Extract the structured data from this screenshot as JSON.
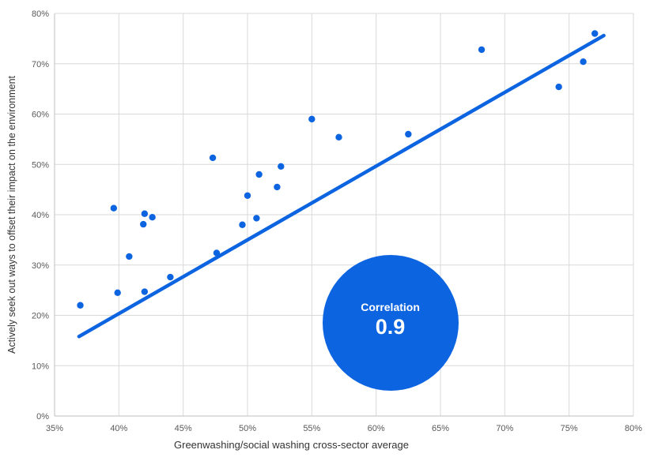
{
  "colors": {
    "accent": "#0d64e1",
    "grid": "#d9d9d9",
    "axis": "#bfbfbf",
    "tick_text": "#595959",
    "title_text": "#333333",
    "annotation_text": "#ffffff"
  },
  "chart_data": {
    "type": "scatter",
    "title": "",
    "xlabel": "Greenwashing/social washing cross-sector average",
    "ylabel": "Actively seek out ways to offset their impact on the environment",
    "xlim": [
      35,
      80
    ],
    "ylim": [
      0,
      80
    ],
    "x_ticks": [
      35,
      40,
      45,
      50,
      55,
      60,
      65,
      70,
      75,
      80
    ],
    "y_ticks": [
      0,
      10,
      20,
      30,
      40,
      50,
      60,
      70,
      80
    ],
    "tick_suffix": "%",
    "grid": true,
    "legend": "none",
    "points": [
      [
        37.0,
        22.0
      ],
      [
        39.6,
        41.3
      ],
      [
        39.9,
        24.5
      ],
      [
        40.8,
        31.7
      ],
      [
        41.9,
        38.1
      ],
      [
        42.0,
        24.7
      ],
      [
        42.0,
        40.2
      ],
      [
        42.6,
        39.5
      ],
      [
        44.0,
        27.6
      ],
      [
        47.3,
        51.3
      ],
      [
        47.6,
        32.4
      ],
      [
        49.6,
        38.0
      ],
      [
        50.0,
        43.8
      ],
      [
        50.7,
        39.3
      ],
      [
        50.9,
        48.0
      ],
      [
        52.3,
        45.5
      ],
      [
        52.6,
        49.6
      ],
      [
        55.0,
        59.0
      ],
      [
        57.1,
        55.4
      ],
      [
        62.5,
        56.0
      ],
      [
        68.2,
        72.8
      ],
      [
        74.2,
        65.4
      ],
      [
        76.1,
        70.4
      ],
      [
        77.0,
        76.0
      ]
    ],
    "trendline": {
      "x1": 36.9,
      "y1": 15.8,
      "x2": 77.7,
      "y2": 75.6
    },
    "annotation": {
      "label": "Correlation",
      "value": "0.9",
      "cx": 61.1,
      "cy": 18.5,
      "radius_px": 86
    }
  }
}
